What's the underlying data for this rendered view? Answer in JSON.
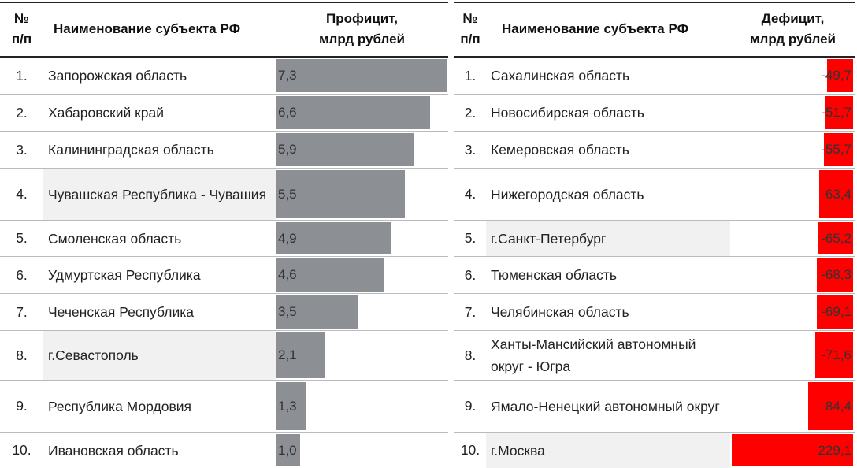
{
  "chart_data": [
    {
      "type": "bar",
      "orientation": "horizontal",
      "headers": {
        "num": "№\nп/п",
        "name": "Наименование субъекта РФ",
        "value": "Профицит,\nмлрд рублей"
      },
      "categories": [
        "Запорожская область",
        "Хабаровский край",
        "Калининградская область",
        "Чувашская Республика - Чувашия",
        "Смоленская область",
        "Удмуртская Республика",
        "Чеченская Республика",
        "г.Севастополь",
        "Республика Мордовия",
        "Ивановская область"
      ],
      "labels": [
        "7,3",
        "6,6",
        "5,9",
        "5,5",
        "4,9",
        "4,6",
        "3,5",
        "2,1",
        "1,3",
        "1,0"
      ],
      "values": [
        7.3,
        6.6,
        5.9,
        5.5,
        4.9,
        4.6,
        3.5,
        2.1,
        1.3,
        1.0
      ],
      "bar_color": "#8c8f93"
    },
    {
      "type": "bar",
      "orientation": "horizontal",
      "headers": {
        "num": "№\nп/п",
        "name": "Наименование субъекта РФ",
        "value": "Дефицит,\nмлрд рублей"
      },
      "categories": [
        "Сахалинская область",
        "Новосибирская область",
        "Кемеровская область",
        "Нижегородская область",
        "г.Санкт-Петербург",
        "Тюменская область",
        "Челябинская область",
        "Ханты-Мансийский автономный округ - Югра",
        "Ямало-Ненецкий автономный округ",
        "г.Москва"
      ],
      "labels": [
        "-49,7",
        "-51,7",
        "-55,7",
        "-63,4",
        "-65,2",
        "-68,3",
        "-69,1",
        "-71,6",
        "-84,4",
        "-229,1"
      ],
      "values": [
        -49.7,
        -51.7,
        -55.7,
        -63.4,
        -65.2,
        -68.3,
        -69.1,
        -71.6,
        -84.4,
        -229.1
      ],
      "bar_color": "#ff0000"
    }
  ],
  "row_numbers": [
    "1.",
    "2.",
    "3.",
    "4.",
    "5.",
    "6.",
    "7.",
    "8.",
    "9.",
    "10."
  ]
}
